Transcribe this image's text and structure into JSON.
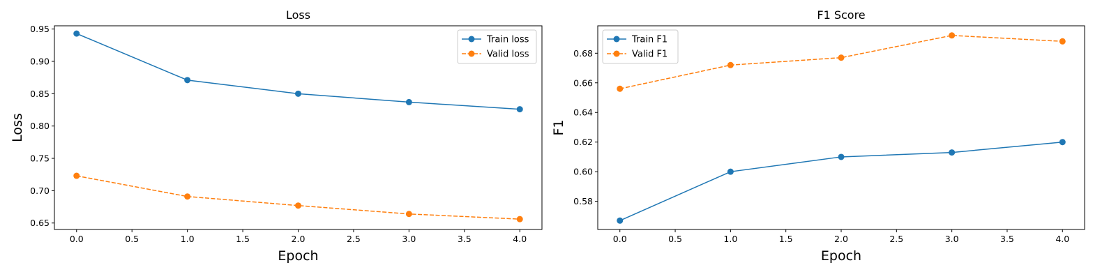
{
  "chart_data": [
    {
      "type": "line",
      "title": "Loss",
      "xlabel": "Epoch",
      "ylabel": "Loss",
      "xlim": [
        -0.2,
        4.2
      ],
      "ylim": [
        0.64,
        0.955
      ],
      "xticks": [
        "0.0",
        "0.5",
        "1.0",
        "1.5",
        "2.0",
        "2.5",
        "3.0",
        "3.5",
        "4.0"
      ],
      "yticks": [
        "0.65",
        "0.70",
        "0.75",
        "0.80",
        "0.85",
        "0.90",
        "0.95"
      ],
      "legend_position": "upper-right",
      "x": [
        0,
        1,
        2,
        3,
        4
      ],
      "series": [
        {
          "name": "Train loss",
          "values": [
            0.943,
            0.871,
            0.85,
            0.837,
            0.826
          ],
          "color": "#1f77b4",
          "dashed": false
        },
        {
          "name": "Valid loss",
          "values": [
            0.723,
            0.691,
            0.677,
            0.664,
            0.656
          ],
          "color": "#ff7f0e",
          "dashed": true
        }
      ],
      "grid": false
    },
    {
      "type": "line",
      "title": "F1 Score",
      "xlabel": "Epoch",
      "ylabel": "F1",
      "xlim": [
        -0.2,
        4.2
      ],
      "ylim": [
        0.561,
        0.6985
      ],
      "xticks": [
        "0.0",
        "0.5",
        "1.0",
        "1.5",
        "2.0",
        "2.5",
        "3.0",
        "3.5",
        "4.0"
      ],
      "yticks": [
        "0.58",
        "0.60",
        "0.62",
        "0.64",
        "0.66",
        "0.68"
      ],
      "legend_position": "upper-left",
      "x": [
        0,
        1,
        2,
        3,
        4
      ],
      "series": [
        {
          "name": "Train F1",
          "values": [
            0.567,
            0.6,
            0.61,
            0.613,
            0.62
          ],
          "color": "#1f77b4",
          "dashed": false
        },
        {
          "name": "Valid F1",
          "values": [
            0.656,
            0.672,
            0.677,
            0.692,
            0.688
          ],
          "color": "#ff7f0e",
          "dashed": true
        }
      ],
      "grid": false
    }
  ]
}
